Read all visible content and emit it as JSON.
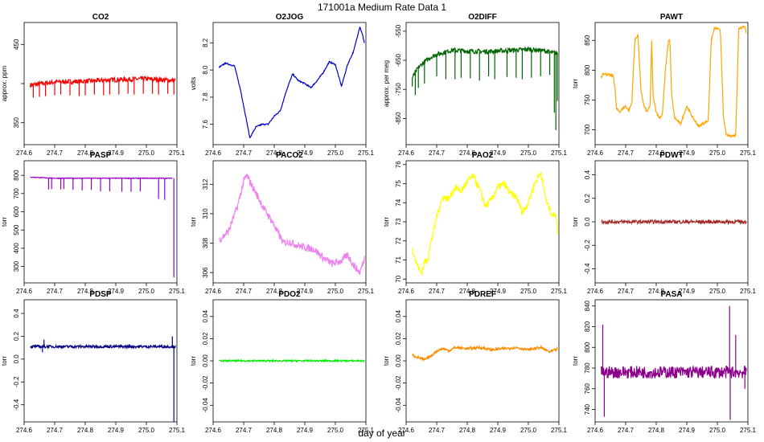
{
  "figure": {
    "title": "171001a   Medium Rate Data 1",
    "xlabel": "day of year"
  },
  "chart_data": [
    {
      "type": "line",
      "title": "CO2",
      "ylabel": "approx. ppm",
      "color": "#ff0000",
      "ylim": [
        322,
        478
      ],
      "yticks": [
        {
          "v": 350,
          "label": "350"
        },
        {
          "v": 400,
          "label": ""
        },
        {
          "v": 450,
          "label": "450"
        }
      ],
      "xlim": [
        274.6,
        275.1
      ],
      "x": [
        274.62,
        274.7,
        274.8,
        274.9,
        275.0,
        275.095
      ],
      "values": [
        398,
        402,
        403,
        405,
        406,
        404
      ],
      "spikes": [
        [
          274.63,
          382
        ],
        [
          274.65,
          383
        ],
        [
          274.67,
          384
        ],
        [
          274.7,
          385
        ],
        [
          274.72,
          386
        ],
        [
          274.75,
          385
        ],
        [
          274.78,
          384
        ],
        [
          274.8,
          385
        ],
        [
          274.83,
          386
        ],
        [
          274.86,
          385
        ],
        [
          274.88,
          386
        ],
        [
          274.91,
          386
        ],
        [
          274.94,
          387
        ],
        [
          274.96,
          386
        ],
        [
          274.99,
          387
        ],
        [
          275.02,
          387
        ],
        [
          275.04,
          386
        ],
        [
          275.07,
          387
        ],
        [
          275.09,
          386
        ]
      ],
      "noise": 3
    },
    {
      "type": "line",
      "title": "O2JOG",
      "ylabel": "volts",
      "color": "#0000cc",
      "ylim": [
        7.45,
        8.35
      ],
      "yticks": [
        {
          "v": 7.6,
          "label": "7.6"
        },
        {
          "v": 7.8,
          "label": "7.8"
        },
        {
          "v": 8.0,
          "label": "8.0"
        },
        {
          "v": 8.2,
          "label": "8.2"
        }
      ],
      "xlim": [
        274.6,
        275.1
      ],
      "x": [
        274.62,
        274.64,
        274.67,
        274.69,
        274.71,
        274.72,
        274.74,
        274.76,
        274.78,
        274.8,
        274.82,
        274.84,
        274.86,
        274.88,
        274.9,
        274.92,
        274.94,
        274.96,
        274.98,
        275.0,
        275.02,
        275.04,
        275.06,
        275.08,
        275.09,
        275.095
      ],
      "values": [
        8.02,
        8.05,
        8.03,
        7.85,
        7.62,
        7.5,
        7.58,
        7.6,
        7.6,
        7.66,
        7.7,
        7.85,
        7.97,
        7.92,
        7.9,
        7.87,
        7.92,
        7.98,
        8.06,
        8.04,
        7.88,
        8.04,
        8.14,
        8.32,
        8.25,
        8.2
      ],
      "noise": 0.005
    },
    {
      "type": "line",
      "title": "O2DIFF",
      "ylabel": "approx. per meg",
      "color": "#006400",
      "ylim": [
        -940,
        -520
      ],
      "yticks": [
        {
          "v": -850,
          "label": "-850"
        },
        {
          "v": -750,
          "label": "-750"
        },
        {
          "v": -650,
          "label": "-650"
        },
        {
          "v": -550,
          "label": "-550"
        }
      ],
      "xlim": [
        274.6,
        275.1
      ],
      "x": [
        274.62,
        274.64,
        274.66,
        274.68,
        274.7,
        274.75,
        274.8,
        274.85,
        274.9,
        274.95,
        275.0,
        275.05,
        275.08,
        275.095
      ],
      "values": [
        -710,
        -675,
        -655,
        -640,
        -630,
        -615,
        -618,
        -620,
        -618,
        -615,
        -612,
        -617,
        -625,
        -625
      ],
      "spikes": [
        [
          274.62,
          -740
        ],
        [
          274.63,
          -770
        ],
        [
          274.64,
          -745
        ],
        [
          274.66,
          -730
        ],
        [
          274.7,
          -705
        ],
        [
          274.73,
          -715
        ],
        [
          274.76,
          -715
        ],
        [
          274.78,
          -710
        ],
        [
          274.81,
          -712
        ],
        [
          274.84,
          -720
        ],
        [
          274.87,
          -705
        ],
        [
          274.89,
          -715
        ],
        [
          274.93,
          -707
        ],
        [
          274.96,
          -710
        ],
        [
          274.98,
          -715
        ],
        [
          275.01,
          -710
        ],
        [
          275.04,
          -705
        ],
        [
          275.07,
          -700
        ],
        [
          275.085,
          -830
        ],
        [
          275.09,
          -890
        ],
        [
          275.095,
          -790
        ]
      ],
      "noise": 8
    },
    {
      "type": "line",
      "title": "PAWT",
      "ylabel": "torr",
      "color": "#ffa500",
      "ylim": [
        675,
        880
      ],
      "yticks": [
        {
          "v": 700,
          "label": "700"
        },
        {
          "v": 750,
          "label": "750"
        },
        {
          "v": 800,
          "label": "800"
        },
        {
          "v": 850,
          "label": "850"
        }
      ],
      "xlim": [
        274.6,
        275.1
      ],
      "x": [
        274.62,
        274.62,
        274.625,
        274.66,
        274.665,
        274.67,
        274.68,
        274.69,
        274.7,
        274.71,
        274.72,
        274.73,
        274.74,
        274.75,
        274.76,
        274.77,
        274.78,
        274.785,
        274.79,
        274.8,
        274.81,
        274.82,
        274.83,
        274.84,
        274.845,
        274.85,
        274.86,
        274.87,
        274.88,
        274.9,
        274.92,
        274.94,
        274.95,
        274.96,
        274.97,
        274.98,
        274.99,
        275.0,
        275.01,
        275.02,
        275.03,
        275.04,
        275.05,
        275.06,
        275.07,
        275.08,
        275.09,
        275.095
      ],
      "values": [
        790,
        785,
        795,
        790,
        770,
        735,
        730,
        735,
        740,
        732,
        745,
        850,
        860,
        765,
        740,
        730,
        740,
        850,
        755,
        730,
        720,
        725,
        800,
        850,
        850,
        760,
        720,
        715,
        710,
        740,
        720,
        705,
        710,
        712,
        715,
        850,
        870,
        870,
        866,
        720,
        690,
        690,
        690,
        690,
        870,
        872,
        875,
        860
      ],
      "noise": 2
    },
    {
      "type": "line",
      "title": "PASP",
      "ylabel": "torr",
      "color": "#9900cc",
      "ylim": [
        210,
        880
      ],
      "yticks": [
        {
          "v": 300,
          "label": "300"
        },
        {
          "v": 400,
          "label": "400"
        },
        {
          "v": 500,
          "label": "500"
        },
        {
          "v": 600,
          "label": "600"
        },
        {
          "v": 700,
          "label": "700"
        },
        {
          "v": 800,
          "label": "800"
        }
      ],
      "xlim": [
        274.6,
        275.1
      ],
      "x": [
        274.62,
        274.7,
        274.8,
        274.9,
        275.0,
        275.085
      ],
      "values": [
        790,
        784,
        784,
        784,
        784,
        784
      ],
      "spikes": [
        [
          274.68,
          722
        ],
        [
          274.69,
          725
        ],
        [
          274.72,
          723
        ],
        [
          274.73,
          725
        ],
        [
          274.76,
          720
        ],
        [
          274.79,
          718
        ],
        [
          274.82,
          720
        ],
        [
          274.85,
          712
        ],
        [
          274.88,
          712
        ],
        [
          274.92,
          710
        ],
        [
          274.95,
          710
        ],
        [
          274.98,
          712
        ],
        [
          275.04,
          670
        ],
        [
          275.06,
          665
        ],
        [
          275.09,
          240
        ]
      ],
      "noise": 2
    },
    {
      "type": "line",
      "title": "PACO2",
      "ylabel": "torr",
      "color": "#ee82ee",
      "ylim": [
        305.3,
        313.6
      ],
      "yticks": [
        {
          "v": 306,
          "label": "306"
        },
        {
          "v": 308,
          "label": "308"
        },
        {
          "v": 310,
          "label": "310"
        },
        {
          "v": 312,
          "label": "312"
        }
      ],
      "xlim": [
        274.6,
        275.1
      ],
      "x": [
        274.62,
        274.65,
        274.68,
        274.7,
        274.71,
        274.73,
        274.75,
        274.77,
        274.79,
        274.81,
        274.83,
        274.85,
        274.87,
        274.9,
        274.93,
        274.96,
        274.99,
        275.02,
        275.04,
        275.06,
        275.08,
        275.09,
        275.095
      ],
      "values": [
        308.2,
        308.8,
        310.5,
        312.2,
        312.6,
        311.8,
        311.0,
        310.2,
        309.6,
        308.8,
        308.0,
        308.1,
        307.9,
        307.7,
        307.6,
        307.0,
        306.6,
        306.8,
        307.2,
        306.5,
        306.0,
        306.6,
        307.0
      ],
      "noise": 0.25
    },
    {
      "type": "line",
      "title": "PAO2",
      "ylabel": "torr",
      "color": "#ffff00",
      "ylim": [
        69.8,
        76.2
      ],
      "yticks": [
        {
          "v": 70,
          "label": "70"
        },
        {
          "v": 71,
          "label": "71"
        },
        {
          "v": 72,
          "label": "72"
        },
        {
          "v": 73,
          "label": "73"
        },
        {
          "v": 74,
          "label": "74"
        },
        {
          "v": 75,
          "label": "75"
        },
        {
          "v": 76,
          "label": "76"
        }
      ],
      "xlim": [
        274.6,
        275.1
      ],
      "x": [
        274.62,
        274.63,
        274.64,
        274.65,
        274.66,
        274.67,
        274.68,
        274.69,
        274.7,
        274.72,
        274.74,
        274.76,
        274.78,
        274.8,
        274.82,
        274.84,
        274.86,
        274.88,
        274.9,
        274.92,
        274.94,
        274.96,
        274.98,
        275.0,
        275.02,
        275.04,
        275.06,
        275.08,
        275.09,
        275.095
      ],
      "values": [
        71.7,
        71.0,
        70.6,
        70.3,
        70.9,
        71.0,
        71.9,
        72.5,
        73.3,
        74.3,
        74.2,
        74.8,
        74.6,
        75.1,
        75.4,
        74.7,
        73.8,
        74.2,
        74.8,
        75.0,
        74.5,
        74.3,
        73.5,
        74.0,
        75.0,
        75.6,
        74.0,
        73.3,
        73.5,
        72.5
      ],
      "noise": 0.18
    },
    {
      "type": "line",
      "title": "PDWT",
      "ylabel": "torr",
      "color": "#a52a2a",
      "ylim": [
        -0.52,
        0.52
      ],
      "yticks": [
        {
          "v": -0.4,
          "label": "-0.4"
        },
        {
          "v": -0.2,
          "label": "-0.2"
        },
        {
          "v": 0.0,
          "label": "0.0"
        },
        {
          "v": 0.2,
          "label": "0.2"
        },
        {
          "v": 0.4,
          "label": "0.4"
        }
      ],
      "xlim": [
        274.6,
        275.1
      ],
      "x": [
        274.62,
        275.095
      ],
      "values": [
        0.0,
        0.0
      ],
      "noise": 0.015
    },
    {
      "type": "line",
      "title": "PDSP",
      "ylabel": "torr",
      "color": "#000080",
      "ylim": [
        -0.55,
        0.52
      ],
      "yticks": [
        {
          "v": -0.4,
          "label": "-0.4"
        },
        {
          "v": -0.2,
          "label": "-0.2"
        },
        {
          "v": 0.0,
          "label": "0.0"
        },
        {
          "v": 0.2,
          "label": "0.2"
        },
        {
          "v": 0.4,
          "label": "0.4"
        }
      ],
      "xlim": [
        274.6,
        275.1
      ],
      "x": [
        274.62,
        275.095
      ],
      "values": [
        0.11,
        0.11
      ],
      "spikes": [
        [
          274.66,
          0.06
        ],
        [
          274.665,
          0.17
        ],
        [
          275.085,
          0.2
        ],
        [
          275.09,
          -0.55
        ]
      ],
      "noise": 0.012
    },
    {
      "type": "line",
      "title": "PDO2",
      "ylabel": "torr",
      "color": "#00ee00",
      "ylim": [
        -0.055,
        0.055
      ],
      "yticks": [
        {
          "v": -0.04,
          "label": "-0.04"
        },
        {
          "v": -0.02,
          "label": "-0.02"
        },
        {
          "v": 0.0,
          "label": "0.00"
        },
        {
          "v": 0.02,
          "label": "0.02"
        },
        {
          "v": 0.04,
          "label": "0.04"
        }
      ],
      "xlim": [
        274.6,
        275.1
      ],
      "x": [
        274.62,
        275.095
      ],
      "values": [
        0.0,
        0.0
      ],
      "noise": 0.0007
    },
    {
      "type": "line",
      "title": "PDREF",
      "ylabel": "torr",
      "color": "#ff8c00",
      "ylim": [
        -0.055,
        0.055
      ],
      "yticks": [
        {
          "v": -0.04,
          "label": "-0.04"
        },
        {
          "v": -0.02,
          "label": "-0.02"
        },
        {
          "v": 0.0,
          "label": "0.00"
        },
        {
          "v": 0.02,
          "label": "0.02"
        },
        {
          "v": 0.04,
          "label": "0.04"
        }
      ],
      "xlim": [
        274.6,
        275.1
      ],
      "x": [
        274.62,
        274.64,
        274.66,
        274.68,
        274.7,
        274.72,
        274.74,
        274.76,
        274.8,
        274.84,
        274.88,
        274.92,
        274.96,
        275.0,
        275.04,
        275.07,
        275.09,
        275.095
      ],
      "values": [
        0.005,
        0.003,
        0.001,
        0.004,
        0.009,
        0.011,
        0.009,
        0.012,
        0.011,
        0.012,
        0.01,
        0.011,
        0.012,
        0.01,
        0.012,
        0.008,
        0.01,
        0.011
      ],
      "noise": 0.0012
    },
    {
      "type": "line",
      "title": "PASA",
      "ylabel": "torr",
      "color": "#8b008b",
      "ylim": [
        728,
        846
      ],
      "yticks": [
        {
          "v": 740,
          "label": "740"
        },
        {
          "v": 760,
          "label": "760"
        },
        {
          "v": 780,
          "label": "780"
        },
        {
          "v": 800,
          "label": "800"
        },
        {
          "v": 820,
          "label": "820"
        },
        {
          "v": 840,
          "label": "840"
        }
      ],
      "xlim": [
        274.6,
        275.1
      ],
      "x": [
        274.62,
        275.095
      ],
      "values": [
        776,
        776
      ],
      "spikes": [
        [
          274.625,
          822
        ],
        [
          274.63,
          733
        ],
        [
          275.04,
          840
        ],
        [
          275.042,
          730
        ],
        [
          275.06,
          812
        ],
        [
          275.09,
          760
        ]
      ],
      "noise": 6
    }
  ]
}
